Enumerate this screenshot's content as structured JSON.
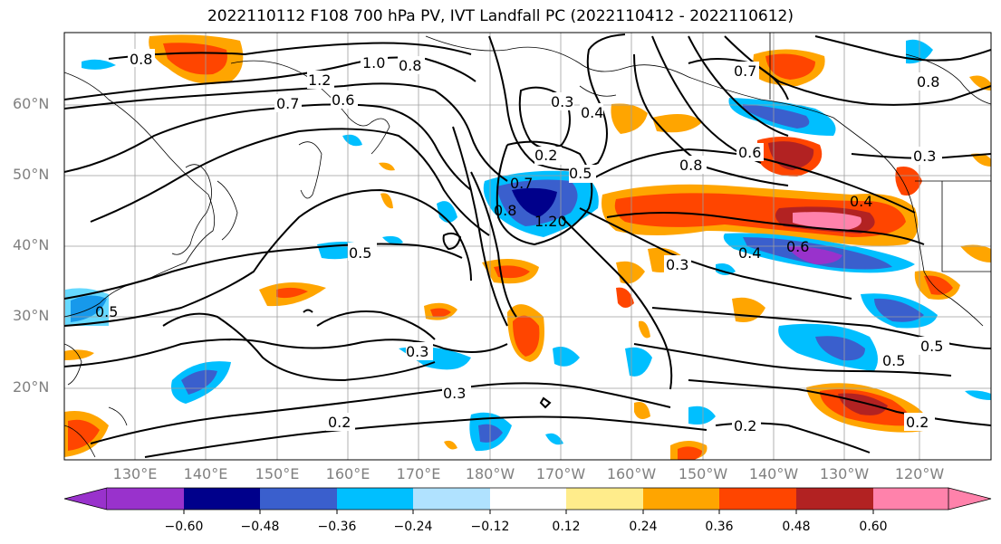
{
  "title": "2022110112 F108 700 hPa PV, IVT Landfall PC (2022110412 - 2022110612)",
  "lat_labels": [
    "60°N",
    "50°N",
    "40°N",
    "30°N",
    "20°N"
  ],
  "lon_labels": [
    "130°E",
    "140°E",
    "150°E",
    "160°E",
    "170°E",
    "180°W",
    "170°W",
    "160°W",
    "150°W",
    "140°W",
    "130°W",
    "120°W"
  ],
  "contour_labels": [
    "0.8",
    "1.2",
    "1.0",
    "0.8",
    "0.7",
    "0.6",
    "0.3",
    "0.4",
    "0.2",
    "0.5",
    "0.7",
    "0.8",
    "1.20",
    "0.5",
    "0.3",
    "0.3",
    "0.2",
    "0.7",
    "0.8",
    "0.6",
    "0.3",
    "0.4",
    "0.6",
    "0.4",
    "0.3",
    "0.5",
    "0.5",
    "0.2",
    "0.2",
    "0.8",
    "0.5"
  ],
  "colorbar": {
    "ticks": [
      "−0.60",
      "−0.48",
      "−0.36",
      "−0.24",
      "−0.12",
      "0.12",
      "0.24",
      "0.36",
      "0.48",
      "0.60"
    ],
    "colors": [
      "#9932cc",
      "#00008b",
      "#3a5fcd",
      "#00bfff",
      "#b0e2ff",
      "#ffffff",
      "#ffec8b",
      "#ffa500",
      "#ff4500",
      "#b22222",
      "#ff82ab"
    ]
  }
}
